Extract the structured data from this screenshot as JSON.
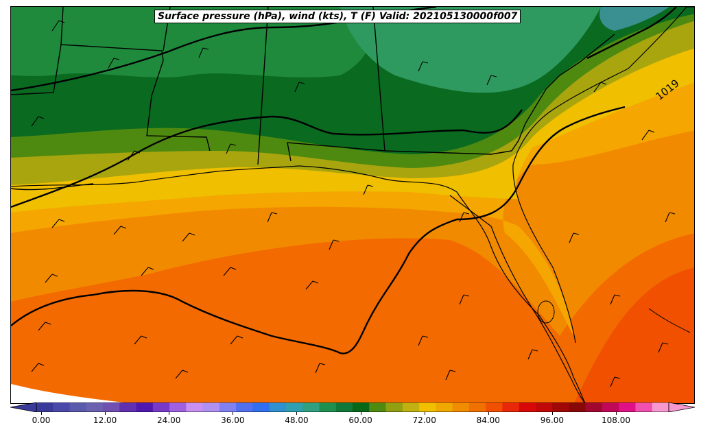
{
  "title": "Surface pressure (hPa), wind (kts), T (F) Valid: 202105130000f007",
  "isobar_label": "1019",
  "colorbar": {
    "ticks": [
      "0.00",
      "12.00",
      "24.00",
      "36.00",
      "48.00",
      "60.00",
      "72.00",
      "84.00",
      "96.00",
      "108.00"
    ],
    "colors": [
      "#3a3a9a",
      "#4a48a8",
      "#5a5aac",
      "#6a62b0",
      "#7050b0",
      "#6030b0",
      "#5018b0",
      "#7838c8",
      "#a060e0",
      "#c890f0",
      "#b090f0",
      "#8080f0",
      "#5070f0",
      "#3070f0",
      "#3090d0",
      "#30a0b0",
      "#30a080",
      "#209050",
      "#107838",
      "#086818",
      "#508a10",
      "#90a010",
      "#c0b010",
      "#f0c000",
      "#f0a800",
      "#f08c00",
      "#f07000",
      "#f05000",
      "#e82808",
      "#d80808",
      "#c00808",
      "#a00808",
      "#880808",
      "#a00830",
      "#c00858",
      "#e01088",
      "#f050b0",
      "#f898d0"
    ]
  },
  "legend": {
    "palette": {
      "dark_green": "#0a6a20",
      "green": "#1f8a3c",
      "teal_green": "#2f9a60",
      "olive": "#4f8a10",
      "khaki": "#a8a50f",
      "gold": "#efbf00",
      "amber": "#f5a600",
      "orange": "#f28a00",
      "deep_orange": "#f26a00",
      "red_orange": "#f05000"
    }
  }
}
